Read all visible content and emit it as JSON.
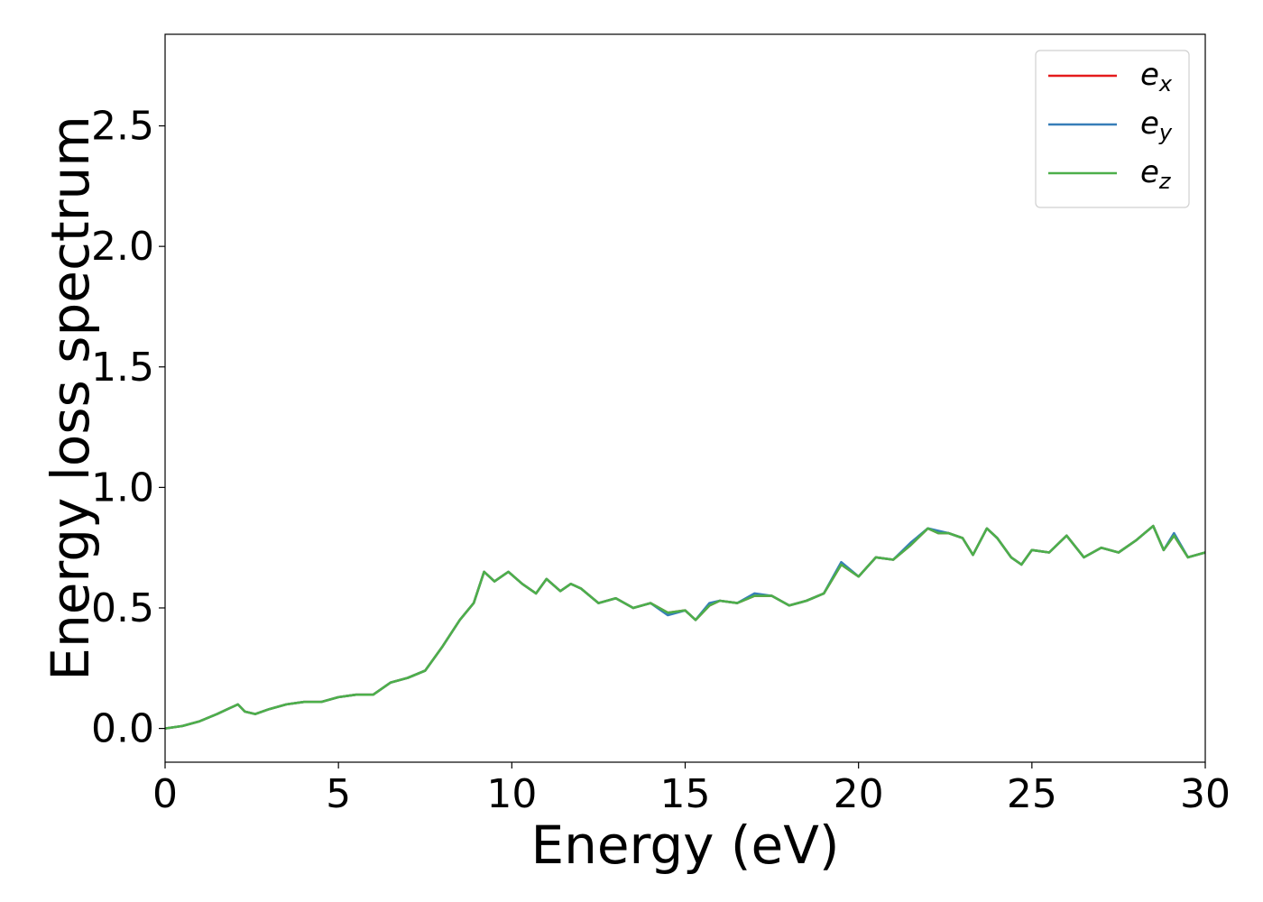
{
  "chart_data": {
    "type": "line",
    "title": "",
    "xlabel": "Energy (eV)",
    "ylabel": "Energy loss spectrum",
    "xlim": [
      0,
      30
    ],
    "ylim": [
      -0.14,
      2.88
    ],
    "xticks": [
      0,
      5,
      10,
      15,
      20,
      25,
      30
    ],
    "xtick_labels": [
      "0",
      "5",
      "10",
      "15",
      "20",
      "25",
      "30"
    ],
    "yticks": [
      0.0,
      0.5,
      1.0,
      1.5,
      2.0,
      2.5
    ],
    "ytick_labels": [
      "0.0",
      "0.5",
      "1.0",
      "1.5",
      "2.0",
      "2.5"
    ],
    "grid": false,
    "legend": {
      "placement": "top-right",
      "entries": [
        {
          "base": "e",
          "sub": "x",
          "color": "#e41a1c"
        },
        {
          "base": "e",
          "sub": "y",
          "color": "#377eb8"
        },
        {
          "base": "e",
          "sub": "z",
          "color": "#4daf4a"
        }
      ]
    },
    "x": [
      0,
      0.5,
      1.0,
      1.5,
      1.8,
      2.1,
      2.3,
      2.6,
      3.0,
      3.5,
      4.0,
      4.5,
      5.0,
      5.5,
      6.0,
      6.5,
      7.0,
      7.5,
      8.0,
      8.5,
      8.9,
      9.2,
      9.5,
      9.9,
      10.3,
      10.7,
      11.0,
      11.4,
      11.7,
      12.0,
      12.5,
      13.0,
      13.5,
      14.0,
      14.5,
      15.0,
      15.3,
      15.7,
      16.0,
      16.5,
      17.0,
      17.5,
      18.0,
      18.5,
      19.0,
      19.5,
      20.0,
      20.5,
      21.0,
      21.5,
      22.0,
      22.3,
      22.6,
      23.0,
      23.3,
      23.7,
      24.0,
      24.4,
      24.7,
      25.0,
      25.5,
      26.0,
      26.5,
      27.0,
      27.5,
      28.0,
      28.5,
      28.8,
      29.1,
      29.5,
      30.0
    ],
    "series": [
      {
        "name": "e_x",
        "color": "#e41a1c",
        "values": [
          0.0,
          0.01,
          0.03,
          0.06,
          0.08,
          0.1,
          0.07,
          0.06,
          0.08,
          0.1,
          0.11,
          0.11,
          0.13,
          0.14,
          0.14,
          0.19,
          0.21,
          0.24,
          0.34,
          0.45,
          0.52,
          0.65,
          0.61,
          0.65,
          0.6,
          0.56,
          0.62,
          0.57,
          0.6,
          0.58,
          0.52,
          0.54,
          0.5,
          0.52,
          0.48,
          0.49,
          0.45,
          0.51,
          0.53,
          0.52,
          0.55,
          0.55,
          0.51,
          0.53,
          0.56,
          0.68,
          0.63,
          0.71,
          0.7,
          0.76,
          0.83,
          0.81,
          0.81,
          0.79,
          0.72,
          0.83,
          0.79,
          0.71,
          0.68,
          0.74,
          0.73,
          0.8,
          0.71,
          0.75,
          0.73,
          0.78,
          0.84,
          0.74,
          0.8,
          0.71,
          0.73
        ]
      },
      {
        "name": "e_y",
        "color": "#377eb8",
        "values": [
          0.0,
          0.01,
          0.03,
          0.06,
          0.08,
          0.1,
          0.07,
          0.06,
          0.08,
          0.1,
          0.11,
          0.11,
          0.13,
          0.14,
          0.14,
          0.19,
          0.21,
          0.24,
          0.34,
          0.45,
          0.52,
          0.65,
          0.61,
          0.65,
          0.6,
          0.56,
          0.62,
          0.57,
          0.6,
          0.58,
          0.52,
          0.54,
          0.5,
          0.52,
          0.47,
          0.49,
          0.45,
          0.52,
          0.53,
          0.52,
          0.56,
          0.55,
          0.51,
          0.53,
          0.56,
          0.69,
          0.63,
          0.71,
          0.7,
          0.77,
          0.83,
          0.82,
          0.81,
          0.79,
          0.72,
          0.83,
          0.79,
          0.71,
          0.68,
          0.74,
          0.73,
          0.8,
          0.71,
          0.75,
          0.73,
          0.78,
          0.84,
          0.74,
          0.81,
          0.71,
          0.73
        ]
      },
      {
        "name": "e_z",
        "color": "#4daf4a",
        "values": [
          0.0,
          0.01,
          0.03,
          0.06,
          0.08,
          0.1,
          0.07,
          0.06,
          0.08,
          0.1,
          0.11,
          0.11,
          0.13,
          0.14,
          0.14,
          0.19,
          0.21,
          0.24,
          0.34,
          0.45,
          0.52,
          0.65,
          0.61,
          0.65,
          0.6,
          0.56,
          0.62,
          0.57,
          0.6,
          0.58,
          0.52,
          0.54,
          0.5,
          0.52,
          0.48,
          0.49,
          0.45,
          0.51,
          0.53,
          0.52,
          0.55,
          0.55,
          0.51,
          0.53,
          0.56,
          0.68,
          0.63,
          0.71,
          0.7,
          0.76,
          0.83,
          0.81,
          0.81,
          0.79,
          0.72,
          0.83,
          0.79,
          0.71,
          0.68,
          0.74,
          0.73,
          0.8,
          0.71,
          0.75,
          0.73,
          0.78,
          0.84,
          0.74,
          0.8,
          0.71,
          0.73
        ]
      }
    ]
  }
}
